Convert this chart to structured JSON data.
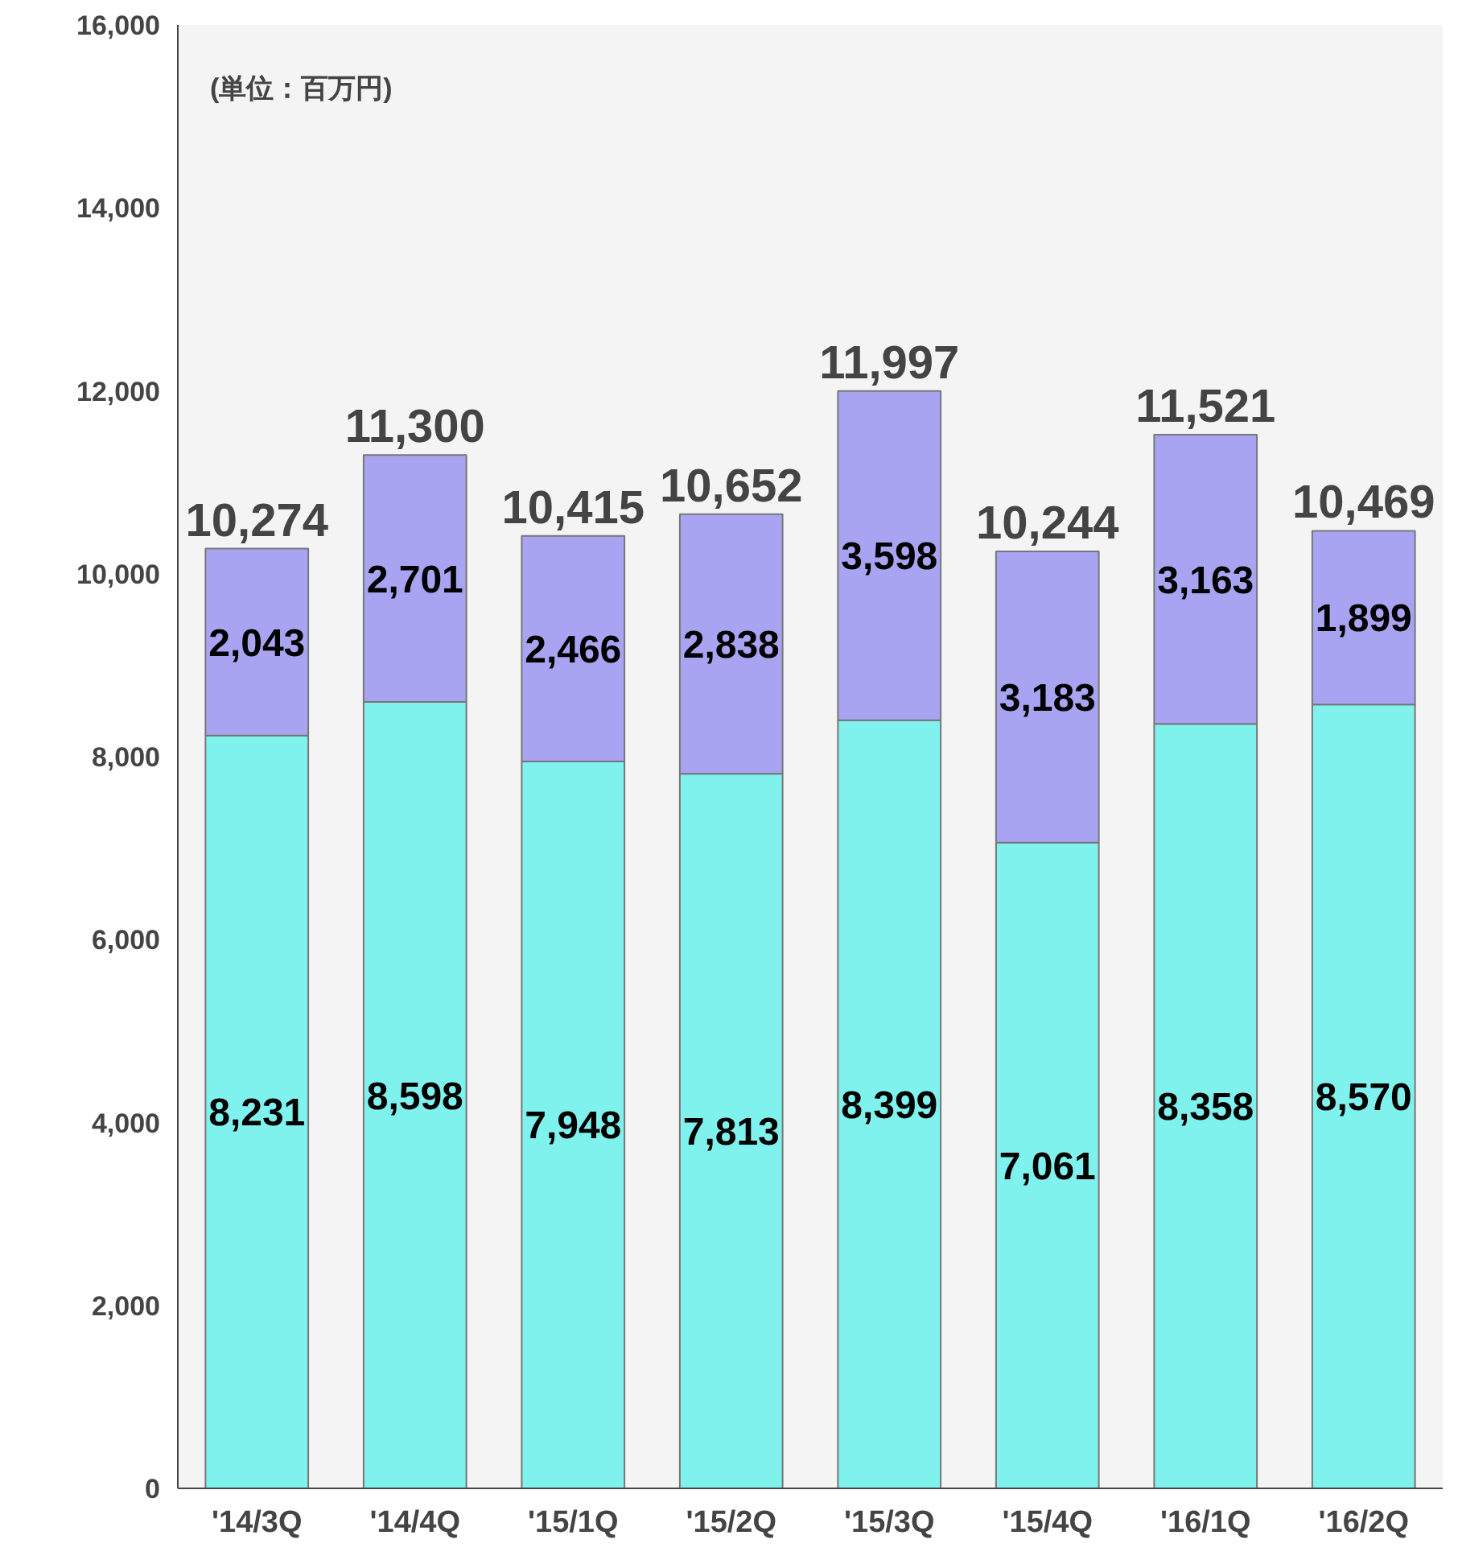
{
  "chart_data": {
    "type": "bar",
    "stacked": true,
    "categories": [
      "'14/3Q",
      "'14/4Q",
      "'15/1Q",
      "'15/2Q",
      "'15/3Q",
      "'15/4Q",
      "'16/1Q",
      "'16/2Q"
    ],
    "series": [
      {
        "color": "#80f2ee",
        "values": [
          8231,
          8598,
          7948,
          7813,
          8399,
          7061,
          8358,
          8570
        ],
        "value_labels": [
          "8,231",
          "8,598",
          "7,948",
          "7,813",
          "8,399",
          "7,061",
          "8,358",
          "8,570"
        ]
      },
      {
        "color": "#a8a4f2",
        "values": [
          2043,
          2701,
          2466,
          2838,
          3598,
          3183,
          3163,
          1899
        ],
        "value_labels": [
          "2,043",
          "2,701",
          "2,466",
          "2,838",
          "3,598",
          "3,183",
          "3,163",
          "1,899"
        ]
      }
    ],
    "totals": [
      "10,274",
      "11,300",
      "10,415",
      "10,652",
      "11,997",
      "10,244",
      "11,521",
      "10,469"
    ],
    "ylim": [
      0,
      16000
    ],
    "yticks": [
      0,
      {
        "value": 2000,
        "label": "2,000"
      },
      {
        "value": 4000,
        "label": "4,000"
      },
      {
        "value": 6000,
        "label": "6,000"
      },
      {
        "value": 8000,
        "label": "8,000"
      },
      {
        "value": 10000,
        "label": "10,000"
      },
      {
        "value": 12000,
        "label": "12,000"
      },
      {
        "value": 14000,
        "label": "14,000"
      },
      {
        "value": 16000,
        "label": "16,000"
      }
    ],
    "grid": false,
    "annotations": [
      "(単位：百万円)"
    ]
  }
}
